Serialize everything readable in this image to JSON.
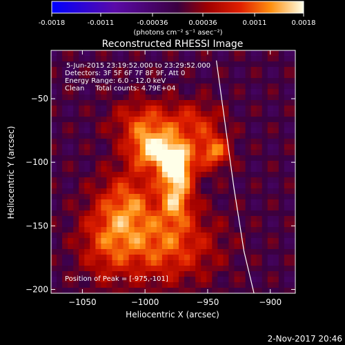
{
  "colorbar": {
    "ticks": [
      "-0.0018",
      "-0.0011",
      "-0.00036",
      "0.00036",
      "0.0011",
      "0.0018"
    ],
    "tick_values": [
      -0.0018,
      -0.0011,
      -0.00036,
      0.00036,
      0.0011,
      0.0018
    ],
    "range": [
      -0.0018,
      0.0018
    ],
    "unit_label": "(photons cm⁻² s⁻¹ asec⁻²)"
  },
  "chart_data": {
    "type": "heatmap",
    "title": "Reconstructed RHESSI Image",
    "xlabel": "Heliocentric X (arcsec)",
    "ylabel": "Heliocentric Y (arcsec)",
    "xlim": [
      -1075,
      -880
    ],
    "ylim": [
      -203,
      -12
    ],
    "x_ticks": [
      -1050,
      -1000,
      -950,
      -900
    ],
    "y_ticks": [
      -50,
      -100,
      -150,
      -200
    ],
    "x_tick_labels": [
      "−1050",
      "−1000",
      "−950",
      "−900"
    ],
    "y_tick_labels": [
      "−50",
      "−100",
      "−150",
      "−200"
    ],
    "annotations": [
      "5-Jun-2015 23:19:52.000 to 23:29:52.000",
      "Detectors: 3F 5F 6F 7F 8F 9F, Att 0",
      "Energy Range: 6.0 - 12.0 keV",
      "Clean     Total counts: 4.79E+04"
    ],
    "peak_label": "Position of Peak = [-975,-101]",
    "peak": [
      -975,
      -101
    ],
    "limb_curve": [
      [
        -943,
        -20
      ],
      [
        -936,
        -70
      ],
      [
        -929,
        -120
      ],
      [
        -921,
        -170
      ],
      [
        -913,
        -203
      ]
    ],
    "sources": [
      {
        "x": -975,
        "y": -101,
        "amp": 0.00185,
        "sx": 10,
        "sy": 12
      },
      {
        "x": -995,
        "y": -90,
        "amp": 0.0014,
        "sx": 13,
        "sy": 11
      },
      {
        "x": -975,
        "y": -128,
        "amp": 0.0012,
        "sx": 9,
        "sy": 14
      },
      {
        "x": -945,
        "y": -92,
        "amp": 0.0012,
        "sx": 9,
        "sy": 9
      },
      {
        "x": -1000,
        "y": -68,
        "amp": 0.0009,
        "sx": 18,
        "sy": 12
      },
      {
        "x": -960,
        "y": -70,
        "amp": 0.0008,
        "sx": 15,
        "sy": 12
      },
      {
        "x": -1012,
        "y": -130,
        "amp": 0.0009,
        "sx": 16,
        "sy": 18
      },
      {
        "x": -985,
        "y": -165,
        "amp": 0.0011,
        "sx": 28,
        "sy": 20
      },
      {
        "x": -1030,
        "y": -160,
        "amp": 0.0008,
        "sx": 16,
        "sy": 22
      }
    ]
  },
  "footer": {
    "timestamp": "2-Nov-2017 20:46"
  }
}
